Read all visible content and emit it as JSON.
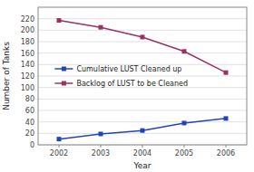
{
  "chart_data": {
    "type": "line",
    "xlabel": "Year",
    "ylabel": "Number of Tanks",
    "x": [
      2002,
      2003,
      2004,
      2005,
      2006
    ],
    "series": [
      {
        "name": "Cumulative LUST Cleaned up",
        "color": "#2244bb",
        "marker": "square",
        "values": [
          10,
          19,
          25,
          38,
          46
        ]
      },
      {
        "name": "Backlog of LUST to be Cleaned",
        "color": "#993366",
        "marker": "square",
        "values": [
          217,
          205,
          188,
          163,
          126
        ]
      }
    ],
    "xlim": [
      2001.5,
      2006.5
    ],
    "xticks": [
      2002,
      2003,
      2004,
      2005,
      2006
    ],
    "ylim": [
      0,
      240
    ],
    "yticks": [
      0,
      20,
      40,
      60,
      80,
      100,
      120,
      140,
      160,
      180,
      200,
      220
    ],
    "grid": "y",
    "legend": "left"
  }
}
